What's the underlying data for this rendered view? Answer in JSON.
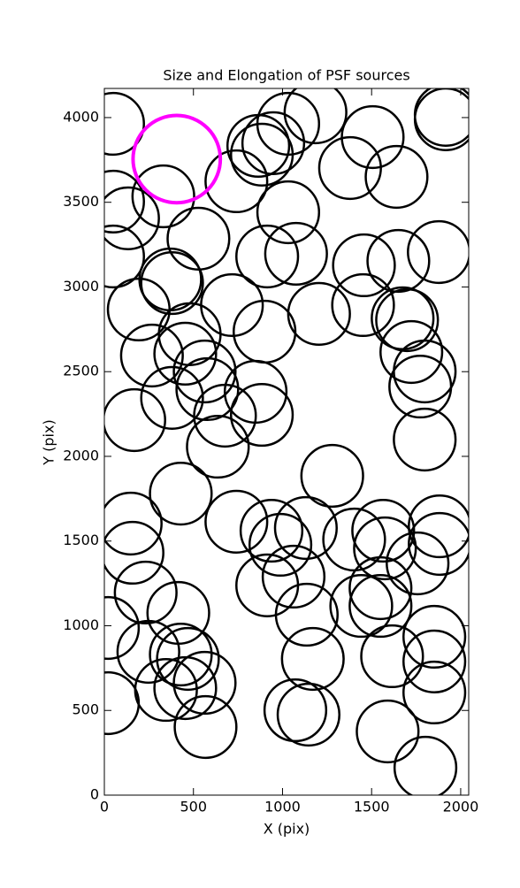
{
  "chart_data": {
    "type": "scatter",
    "title": "Size and Elongation of PSF sources",
    "x_label": "X (pix)",
    "y_label": "Y (pix)",
    "xlim": [
      0,
      2045
    ],
    "ylim": [
      0,
      4172
    ],
    "xticks": [
      0,
      500,
      1000,
      1500,
      2000
    ],
    "yticks": [
      0,
      500,
      1000,
      1500,
      2000,
      2500,
      3000,
      3500,
      4000
    ],
    "series": [
      {
        "color": "#000000",
        "radius": 173,
        "x": [
          49,
          331,
          49,
          133,
          741,
          528,
          49,
          370,
          380,
          193,
          716,
          479,
          267,
          454,
          563,
          380,
          578,
          677,
          637,
          168,
          849,
          884,
          899,
          914,
          1076,
          1032,
          864,
          884,
          948,
          1032,
          1185,
          1506,
          1379,
          1640,
          1916,
          1916,
          1457,
          1650,
          1877,
          1452,
          1674,
          1699,
          1723,
          1798,
          1773,
          1798,
          1205,
          1279,
          148,
          158,
          232,
          20,
          415,
          429,
          741,
          938,
          988,
          1131,
          1402,
          1565,
          1575,
          1758,
          1882,
          1882,
          914,
          1062,
          1136,
          1442,
          1550,
          1550,
          1852,
          1852,
          1852,
          1170,
          1615,
          247,
          429,
          469,
          563,
          346,
          454,
          20,
          568,
          1072,
          1146,
          1590,
          1802
        ],
        "y": [
          3963,
          3535,
          3504,
          3405,
          3624,
          3285,
          3180,
          3044,
          3023,
          2867,
          2893,
          2721,
          2595,
          2606,
          2501,
          2345,
          2397,
          2240,
          2057,
          2214,
          2381,
          2245,
          2736,
          3180,
          3196,
          3441,
          3833,
          3781,
          3849,
          3963,
          4031,
          3885,
          3702,
          3650,
          4016,
          3990,
          3128,
          3154,
          3206,
          2893,
          2815,
          2804,
          2616,
          2501,
          2412,
          2099,
          2841,
          1885,
          1603,
          1431,
          1196,
          987,
          1076,
          1780,
          1614,
          1561,
          1478,
          1577,
          1509,
          1561,
          1457,
          1368,
          1587,
          1483,
          1238,
          1290,
          1065,
          1117,
          1222,
          1117,
          935,
          789,
          606,
          804,
          820,
          846,
          830,
          804,
          663,
          621,
          632,
          543,
          402,
          501,
          475,
          376,
          162
        ]
      },
      {
        "color": "#ff00ff",
        "radius": 245,
        "x": [
          406
        ],
        "y": [
          3755
        ]
      }
    ]
  }
}
